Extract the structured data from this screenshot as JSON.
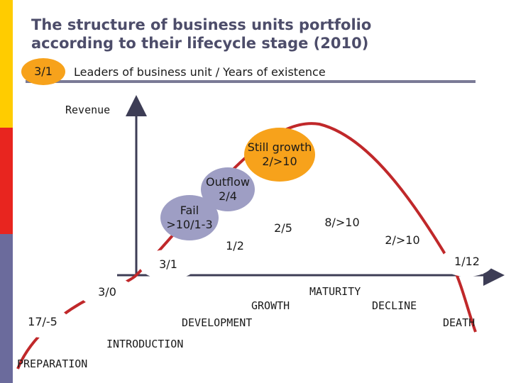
{
  "title": {
    "line1": "The structure of business units portfolio",
    "line2": "according to their lifecycle stage (2010)"
  },
  "legend": {
    "sample": "3/1",
    "text": "Leaders of business unit / Years of existence"
  },
  "axis": {
    "y_label": "Revenue"
  },
  "bubbles": {
    "still_growth": {
      "line1": "Still growth",
      "line2": "2/>10"
    },
    "outflow": {
      "line1": "Outflow",
      "line2": "2/4"
    },
    "fail": {
      "line1": "Fail",
      "line2": ">10/1-3"
    }
  },
  "points": {
    "p_3_1": "3/1",
    "p_1_2": "1/2",
    "p_2_5": "2/5",
    "p_8_10": "8/>10",
    "p_2_10": "2/>10",
    "p_1_12": "1/12",
    "p_3_0": "3/0",
    "p_17_5": "17/-5"
  },
  "stages": {
    "preparation": "PREPARATION",
    "introduction": "INTRODUCTION",
    "development": "DEVELOPMENT",
    "growth": "GROWTH",
    "maturity": "MATURITY",
    "decline": "DECLINE",
    "death": "DEATH"
  },
  "colors": {
    "stripe_yellow": "#ffcc00",
    "stripe_red": "#e8251f",
    "stripe_blue": "#6b6b9c",
    "curve": "#c0282a",
    "axis": "#3d3d55",
    "bubble_orange": "#f7a21b",
    "bubble_gray": "#9e9ec4",
    "title": "#4d4d6a"
  }
}
